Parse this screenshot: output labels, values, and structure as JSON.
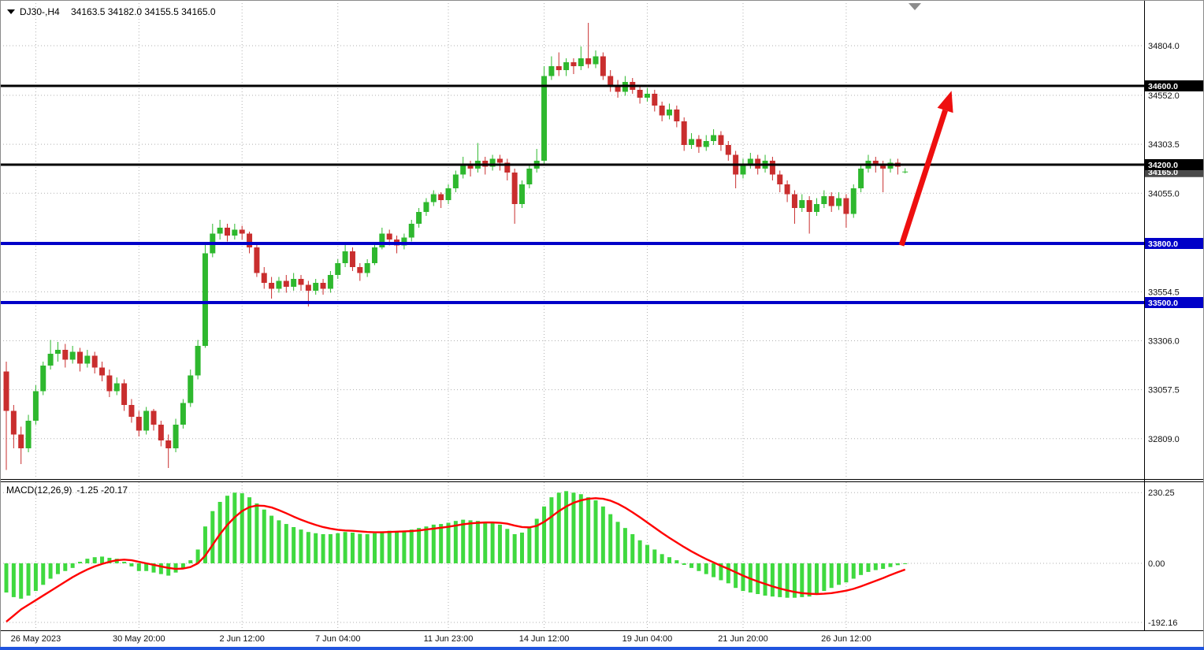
{
  "header": {
    "symbol": "DJ30-,H4",
    "ohlc": "34163.5 34182.0 34155.5 34165.0"
  },
  "colors": {
    "bull": "#2eb82e",
    "bear": "#c92e2e",
    "macd_bar": "#3fd93f",
    "macd_signal": "#ff0000",
    "level_black": "#000000",
    "level_blue": "#0000c8",
    "arrow": "#ee0f0f",
    "current_price_box": "#4a4a4a",
    "bottom_bar": "#2054df"
  },
  "chart_data": {
    "type": "candlestick",
    "title": "DJ30-,H4",
    "timeframe": "H4",
    "current_ohlc": {
      "open": 34163.5,
      "high": 34182.0,
      "low": 34155.5,
      "close": 34165.0
    },
    "price_axis_labels": [
      "34804.0",
      "34552.0",
      "34303.5",
      "34055.0",
      "33554.5",
      "33306.0",
      "33057.5",
      "32809.0"
    ],
    "time_axis_labels": [
      {
        "text": "26 May 2023",
        "index": 4
      },
      {
        "text": "30 May 20:00",
        "index": 18
      },
      {
        "text": "2 Jun 12:00",
        "index": 32
      },
      {
        "text": "7 Jun 04:00",
        "index": 45
      },
      {
        "text": "11 Jun 23:00",
        "index": 60
      },
      {
        "text": "14 Jun 12:00",
        "index": 73
      },
      {
        "text": "19 Jun 04:00",
        "index": 87
      },
      {
        "text": "21 Jun 20:00",
        "index": 100
      },
      {
        "text": "26 Jun 12:00",
        "index": 114
      }
    ],
    "hlines": [
      {
        "price": 34600.0,
        "label": "34600.0",
        "color": "#000000",
        "width": 3
      },
      {
        "price": 34200.0,
        "label": "34200.0",
        "color": "#000000",
        "width": 3
      },
      {
        "price": 33800.0,
        "label": "33800.0",
        "color": "#0000c8",
        "width": 4
      },
      {
        "price": 33500.0,
        "label": "33500.0",
        "color": "#0000c8",
        "width": 4
      }
    ],
    "current_price_label": "34165.0",
    "arrow": {
      "from": {
        "index": 121.5,
        "price": 33790
      },
      "to": {
        "index": 128.3,
        "price": 34575
      }
    },
    "candles": [
      [
        33150,
        33200,
        32650,
        32950
      ],
      [
        32950,
        32980,
        32760,
        32830
      ],
      [
        32830,
        32870,
        32680,
        32760
      ],
      [
        32760,
        32930,
        32740,
        32900
      ],
      [
        32900,
        33080,
        32880,
        33050
      ],
      [
        33050,
        33200,
        33030,
        33180
      ],
      [
        33180,
        33310,
        33160,
        33240
      ],
      [
        33240,
        33300,
        33200,
        33260
      ],
      [
        33260,
        33290,
        33170,
        33210
      ],
      [
        33210,
        33280,
        33190,
        33250
      ],
      [
        33250,
        33270,
        33150,
        33190
      ],
      [
        33190,
        33260,
        33170,
        33230
      ],
      [
        33230,
        33250,
        33140,
        33170
      ],
      [
        33170,
        33200,
        33100,
        33130
      ],
      [
        33130,
        33160,
        33020,
        33050
      ],
      [
        33050,
        33120,
        33030,
        33090
      ],
      [
        33090,
        33110,
        32950,
        32980
      ],
      [
        32980,
        33010,
        32890,
        32920
      ],
      [
        32920,
        32950,
        32820,
        32850
      ],
      [
        32850,
        32970,
        32830,
        32950
      ],
      [
        32950,
        32960,
        32850,
        32880
      ],
      [
        32880,
        32900,
        32770,
        32800
      ],
      [
        32800,
        32830,
        32660,
        32760
      ],
      [
        32760,
        32910,
        32740,
        32880
      ],
      [
        32880,
        33010,
        32860,
        32990
      ],
      [
        32990,
        33160,
        32970,
        33130
      ],
      [
        33130,
        33310,
        33110,
        33280
      ],
      [
        33280,
        33800,
        33270,
        33750
      ],
      [
        33750,
        33900,
        33730,
        33850
      ],
      [
        33850,
        33920,
        33820,
        33880
      ],
      [
        33880,
        33900,
        33810,
        33840
      ],
      [
        33840,
        33900,
        33820,
        33870
      ],
      [
        33870,
        33890,
        33820,
        33850
      ],
      [
        33850,
        33860,
        33750,
        33780
      ],
      [
        33780,
        33800,
        33630,
        33650
      ],
      [
        33650,
        33680,
        33570,
        33600
      ],
      [
        33600,
        33630,
        33520,
        33570
      ],
      [
        33570,
        33630,
        33550,
        33610
      ],
      [
        33610,
        33640,
        33550,
        33580
      ],
      [
        33580,
        33650,
        33560,
        33620
      ],
      [
        33620,
        33640,
        33560,
        33590
      ],
      [
        33590,
        33610,
        33480,
        33560
      ],
      [
        33560,
        33620,
        33540,
        33600
      ],
      [
        33600,
        33620,
        33540,
        33570
      ],
      [
        33570,
        33660,
        33550,
        33640
      ],
      [
        33640,
        33720,
        33620,
        33700
      ],
      [
        33700,
        33800,
        33680,
        33760
      ],
      [
        33760,
        33780,
        33660,
        33680
      ],
      [
        33680,
        33700,
        33610,
        33650
      ],
      [
        33650,
        33720,
        33630,
        33700
      ],
      [
        33700,
        33800,
        33690,
        33780
      ],
      [
        33780,
        33880,
        33770,
        33850
      ],
      [
        33850,
        33870,
        33790,
        33820
      ],
      [
        33820,
        33840,
        33750,
        33790
      ],
      [
        33790,
        33850,
        33770,
        33830
      ],
      [
        33830,
        33920,
        33810,
        33900
      ],
      [
        33900,
        33980,
        33880,
        33960
      ],
      [
        33960,
        34030,
        33940,
        34010
      ],
      [
        34010,
        34070,
        33990,
        34050
      ],
      [
        34050,
        34060,
        33980,
        34020
      ],
      [
        34020,
        34100,
        34000,
        34080
      ],
      [
        34080,
        34170,
        34060,
        34150
      ],
      [
        34150,
        34240,
        34130,
        34200
      ],
      [
        34200,
        34220,
        34140,
        34180
      ],
      [
        34180,
        34310,
        34160,
        34220
      ],
      [
        34220,
        34240,
        34150,
        34190
      ],
      [
        34190,
        34250,
        34170,
        34230
      ],
      [
        34230,
        34250,
        34170,
        34210
      ],
      [
        34210,
        34230,
        34120,
        34160
      ],
      [
        34160,
        34180,
        33900,
        34000
      ],
      [
        34000,
        34120,
        33980,
        34100
      ],
      [
        34100,
        34200,
        34080,
        34180
      ],
      [
        34180,
        34280,
        34160,
        34220
      ],
      [
        34220,
        34700,
        34200,
        34650
      ],
      [
        34650,
        34750,
        34630,
        34700
      ],
      [
        34700,
        34770,
        34650,
        34680
      ],
      [
        34680,
        34740,
        34650,
        34720
      ],
      [
        34720,
        34740,
        34660,
        34700
      ],
      [
        34700,
        34800,
        34680,
        34740
      ],
      [
        34740,
        34920,
        34690,
        34710
      ],
      [
        34710,
        34780,
        34690,
        34750
      ],
      [
        34750,
        34770,
        34630,
        34650
      ],
      [
        34650,
        34680,
        34570,
        34600
      ],
      [
        34600,
        34630,
        34540,
        34570
      ],
      [
        34570,
        34650,
        34550,
        34620
      ],
      [
        34620,
        34640,
        34560,
        34580
      ],
      [
        34580,
        34600,
        34510,
        34540
      ],
      [
        34540,
        34590,
        34520,
        34560
      ],
      [
        34560,
        34580,
        34470,
        34500
      ],
      [
        34500,
        34520,
        34420,
        34450
      ],
      [
        34450,
        34510,
        34430,
        34480
      ],
      [
        34480,
        34500,
        34390,
        34420
      ],
      [
        34420,
        34440,
        34270,
        34300
      ],
      [
        34300,
        34360,
        34280,
        34330
      ],
      [
        34330,
        34350,
        34260,
        34290
      ],
      [
        34290,
        34350,
        34270,
        34320
      ],
      [
        34320,
        34380,
        34300,
        34350
      ],
      [
        34350,
        34370,
        34270,
        34300
      ],
      [
        34300,
        34320,
        34220,
        34250
      ],
      [
        34250,
        34270,
        34080,
        34150
      ],
      [
        34150,
        34230,
        34130,
        34200
      ],
      [
        34200,
        34260,
        34180,
        34230
      ],
      [
        34230,
        34250,
        34150,
        34180
      ],
      [
        34180,
        34250,
        34160,
        34220
      ],
      [
        34220,
        34240,
        34120,
        34150
      ],
      [
        34150,
        34170,
        34060,
        34100
      ],
      [
        34100,
        34120,
        34010,
        34050
      ],
      [
        34050,
        34070,
        33900,
        33980
      ],
      [
        33980,
        34050,
        33960,
        34020
      ],
      [
        34020,
        34040,
        33850,
        33960
      ],
      [
        33960,
        34030,
        33940,
        34000
      ],
      [
        34000,
        34070,
        33980,
        34040
      ],
      [
        34040,
        34060,
        33960,
        33990
      ],
      [
        33990,
        34060,
        33970,
        34030
      ],
      [
        34030,
        34050,
        33880,
        33950
      ],
      [
        33950,
        34100,
        33930,
        34080
      ],
      [
        34080,
        34200,
        34060,
        34180
      ],
      [
        34180,
        34250,
        34160,
        34220
      ],
      [
        34220,
        34240,
        34160,
        34200
      ],
      [
        34200,
        34220,
        34060,
        34180
      ],
      [
        34180,
        34230,
        34160,
        34210
      ],
      [
        34210,
        34230,
        34150,
        34190
      ],
      [
        34163.5,
        34182,
        34155.5,
        34165
      ]
    ],
    "macd": {
      "title": "MACD(12,26,9)",
      "values_text": "-1.25 -20.17",
      "main_value": -1.25,
      "signal_value": -20.17,
      "axis_labels": [
        "230.25",
        "0.00",
        "-192.16"
      ],
      "histogram": [
        -95,
        -110,
        -115,
        -105,
        -90,
        -70,
        -50,
        -35,
        -25,
        -15,
        5,
        15,
        20,
        22,
        18,
        15,
        5,
        -10,
        -25,
        -25,
        -30,
        -35,
        -40,
        -30,
        -15,
        10,
        45,
        120,
        170,
        200,
        220,
        230,
        228,
        215,
        195,
        175,
        155,
        140,
        128,
        118,
        110,
        102,
        98,
        95,
        95,
        98,
        102,
        100,
        96,
        95,
        98,
        104,
        106,
        105,
        106,
        110,
        115,
        120,
        126,
        128,
        132,
        138,
        142,
        140,
        138,
        135,
        132,
        126,
        112,
        95,
        100,
        118,
        145,
        185,
        215,
        230,
        235,
        230,
        225,
        215,
        205,
        185,
        160,
        135,
        115,
        95,
        75,
        60,
        45,
        30,
        20,
        10,
        -5,
        -15,
        -25,
        -35,
        -45,
        -55,
        -65,
        -80,
        -90,
        -95,
        -100,
        -105,
        -108,
        -110,
        -112,
        -112,
        -110,
        -108,
        -100,
        -90,
        -80,
        -70,
        -62,
        -50,
        -38,
        -28,
        -22,
        -18,
        -12,
        -6,
        -1.25
      ],
      "signal": [
        -190,
        -170,
        -150,
        -135,
        -120,
        -105,
        -90,
        -75,
        -60,
        -45,
        -32,
        -20,
        -10,
        -2,
        5,
        10,
        12,
        10,
        5,
        0,
        -5,
        -10,
        -15,
        -18,
        -17,
        -12,
        0,
        25,
        60,
        95,
        125,
        150,
        170,
        183,
        188,
        187,
        182,
        173,
        163,
        152,
        142,
        133,
        125,
        118,
        113,
        109,
        107,
        106,
        104,
        102,
        101,
        101,
        102,
        103,
        104,
        105,
        107,
        110,
        113,
        116,
        119,
        123,
        127,
        130,
        132,
        133,
        133,
        132,
        129,
        123,
        118,
        117,
        122,
        135,
        152,
        170,
        185,
        197,
        205,
        210,
        212,
        210,
        204,
        194,
        181,
        166,
        150,
        133,
        116,
        99,
        83,
        68,
        53,
        39,
        26,
        14,
        3,
        -8,
        -18,
        -29,
        -40,
        -50,
        -59,
        -67,
        -75,
        -82,
        -88,
        -93,
        -97,
        -99,
        -100,
        -99,
        -97,
        -93,
        -89,
        -83,
        -75,
        -66,
        -57,
        -48,
        -38,
        -29,
        -20.17
      ]
    }
  }
}
